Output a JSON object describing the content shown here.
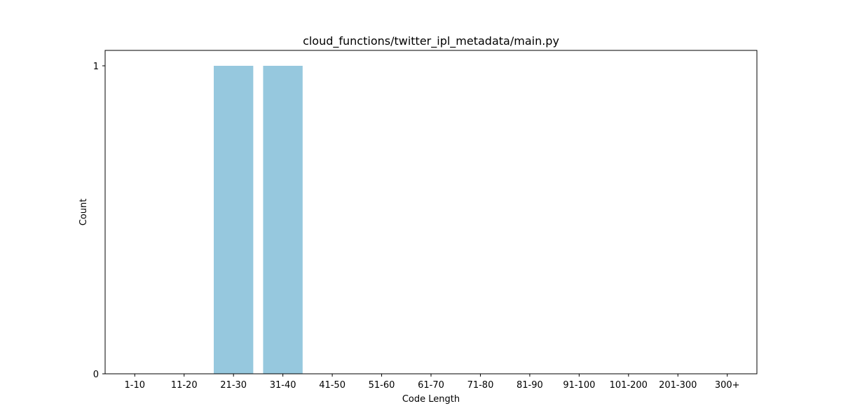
{
  "chart_data": {
    "type": "bar",
    "title": "cloud_functions/twitter_ipl_metadata/main.py",
    "xlabel": "Code Length",
    "ylabel": "Count",
    "categories": [
      "1-10",
      "11-20",
      "21-30",
      "31-40",
      "41-50",
      "51-60",
      "61-70",
      "71-80",
      "81-90",
      "91-100",
      "101-200",
      "201-300",
      "300+"
    ],
    "values": [
      0,
      0,
      1,
      1,
      0,
      0,
      0,
      0,
      0,
      0,
      0,
      0,
      0
    ],
    "ylim": [
      0,
      1.05
    ],
    "yticks": [
      0,
      1
    ],
    "grid": false,
    "legend": "none",
    "bar_color": "#96c8de"
  }
}
